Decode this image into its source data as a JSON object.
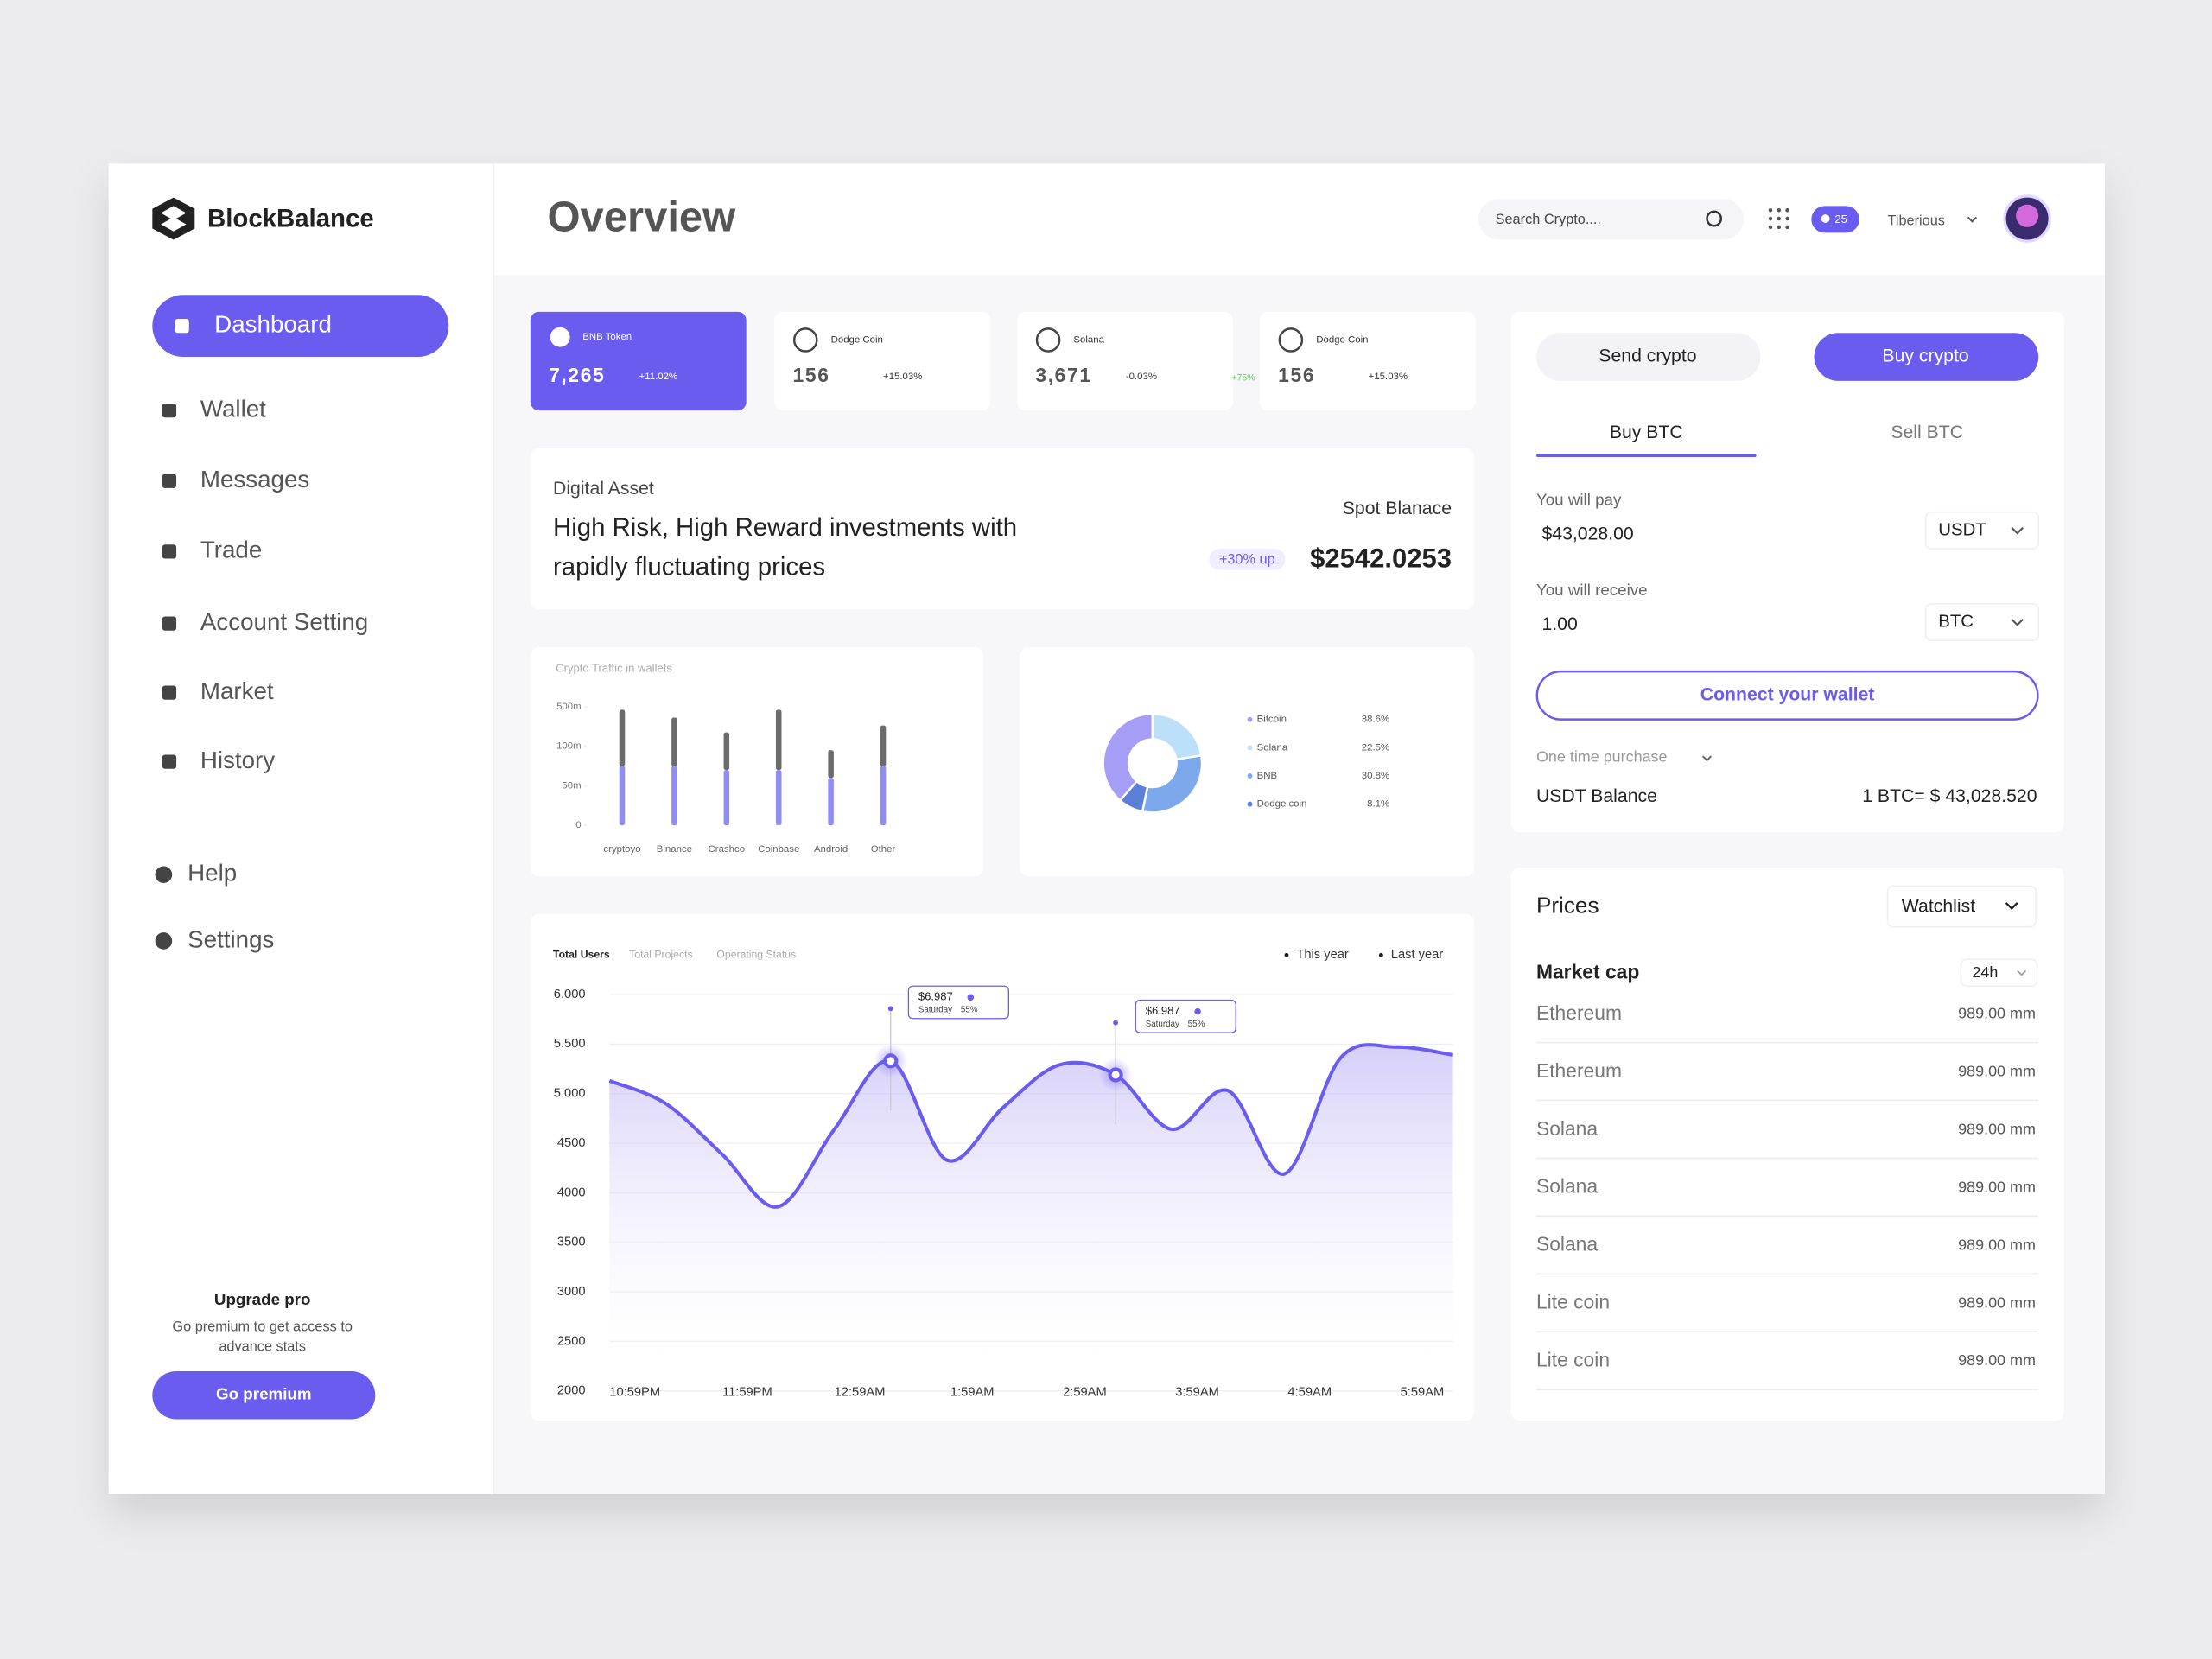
{
  "brand": "BlockBalance",
  "nav": {
    "items": [
      "Dashboard",
      "Wallet",
      "Messages",
      "Trade",
      "Account Setting",
      "Market",
      "History"
    ],
    "bottom": [
      "Help",
      "Settings"
    ]
  },
  "upgrade": {
    "title": "Upgrade pro",
    "text": [
      "Go premium to get access to",
      "advance stats"
    ],
    "button": "Go premium"
  },
  "header": {
    "title": "Overview",
    "search": "Search Crypto....",
    "notifications": "25",
    "user": "Tiberious"
  },
  "coins": [
    {
      "name": "BNB Token",
      "value": "7,265",
      "change": "+11.02%"
    },
    {
      "name": "Dodge Coin",
      "value": "156",
      "change": "+15.03%"
    },
    {
      "name": "Solana",
      "value": "3,671",
      "change": "-0.03%",
      "badge": "+75%"
    },
    {
      "name": "Dodge Coin",
      "value": "156",
      "change": "+15.03%"
    }
  ],
  "asset": {
    "label": "Digital Asset",
    "headline": [
      "High Risk, High Reward investments with",
      "rapidly fluctuating prices"
    ],
    "spot_label": "Spot Blanace",
    "badge": "+30% up",
    "balance": "$2542.0253"
  },
  "traffic_chart": {
    "type": "bar",
    "title": "Crypto Traffic in wallets",
    "categories": [
      "cryptoyo",
      "Binance",
      "Crashco",
      "Coinbase",
      "Android",
      "Other"
    ],
    "series": [
      {
        "color": "#8f8cf2",
        "values": [
          75,
          75,
          70,
          70,
          60,
          75
        ]
      },
      {
        "color": "#6b6b6b",
        "values": [
          395,
          315,
          170,
          400,
          35,
          235
        ]
      }
    ],
    "ylim": [
      0,
      500
    ],
    "yticks": [
      0,
      {
        "value": 50,
        "label": "50m"
      },
      {
        "value": 100,
        "label": "100m"
      },
      {
        "value": 500,
        "label": "500m"
      }
    ]
  },
  "share_chart": {
    "type": "pie",
    "categories": [
      "Bitcoin",
      "Solana",
      "BNB",
      "Dodge coin"
    ],
    "values": [
      38.6,
      22.5,
      30.8,
      8.1
    ],
    "value_labels": [
      "38.6%",
      "22.5%",
      "30.8%",
      "8.1%"
    ],
    "colors": [
      "#a59df6",
      "#bde0fa",
      "#7ea8ec",
      "#5b80d8"
    ]
  },
  "users_chart": {
    "type": "line",
    "tabs": [
      "Total Users",
      "Total Projects",
      "Operating Status"
    ],
    "legend": [
      "This year",
      "Last year"
    ],
    "categories": [
      "10:59PM",
      null,
      "11:59PM",
      null,
      "12:59AM",
      null,
      "1:59AM",
      null,
      "2:59AM",
      null,
      "3:59AM",
      null,
      "4:59AM",
      null,
      "5:59AM",
      null
    ],
    "series": [
      {
        "color": "#6b5cf0",
        "values": [
          5130,
          4900,
          4390,
          3860,
          4640,
          5330,
          4330,
          4860,
          5290,
          5190,
          4640,
          5030,
          4190,
          5360,
          5470,
          5390
        ]
      }
    ],
    "ylim": [
      2000,
      6000
    ],
    "yticks": [
      {
        "value": 6000,
        "label": "6.000"
      },
      {
        "value": 5500,
        "label": "5.500"
      },
      {
        "value": 5000,
        "label": "5.000"
      },
      4500,
      4000,
      3500,
      3000,
      2500,
      2000
    ],
    "grid": true,
    "tooltips": [
      {
        "value": "$6.987",
        "day": "Saturday",
        "pct": "55%"
      },
      {
        "value": "$6.987",
        "day": "Saturday",
        "pct": "55%"
      }
    ]
  },
  "trade": {
    "actions": [
      "Send crypto",
      "Buy crypto"
    ],
    "tabs": [
      "Buy BTC",
      "Sell BTC"
    ],
    "pay_label": "You will pay",
    "pay_value": "$43,028.00",
    "pay_currency": "USDT",
    "receive_label": "You will receive",
    "receive_value": "1.00",
    "receive_currency": "BTC",
    "connect": "Connect your wallet",
    "purchase_type": "One time purchase",
    "balance_label": "USDT Balance",
    "rate": "1 BTC= $ 43,028.520"
  },
  "prices": {
    "title": "Prices",
    "filter": "Watchlist",
    "subtitle": "Market cap",
    "period": "24h",
    "rows": [
      [
        "Ethereum",
        "989.00 mm"
      ],
      [
        "Ethereum",
        "989.00 mm"
      ],
      [
        "Solana",
        "989.00 mm"
      ],
      [
        "Solana",
        "989.00 mm"
      ],
      [
        "Solana",
        "989.00 mm"
      ],
      [
        "Lite coin",
        "989.00 mm"
      ],
      [
        "Lite coin",
        "989.00 mm"
      ]
    ]
  }
}
